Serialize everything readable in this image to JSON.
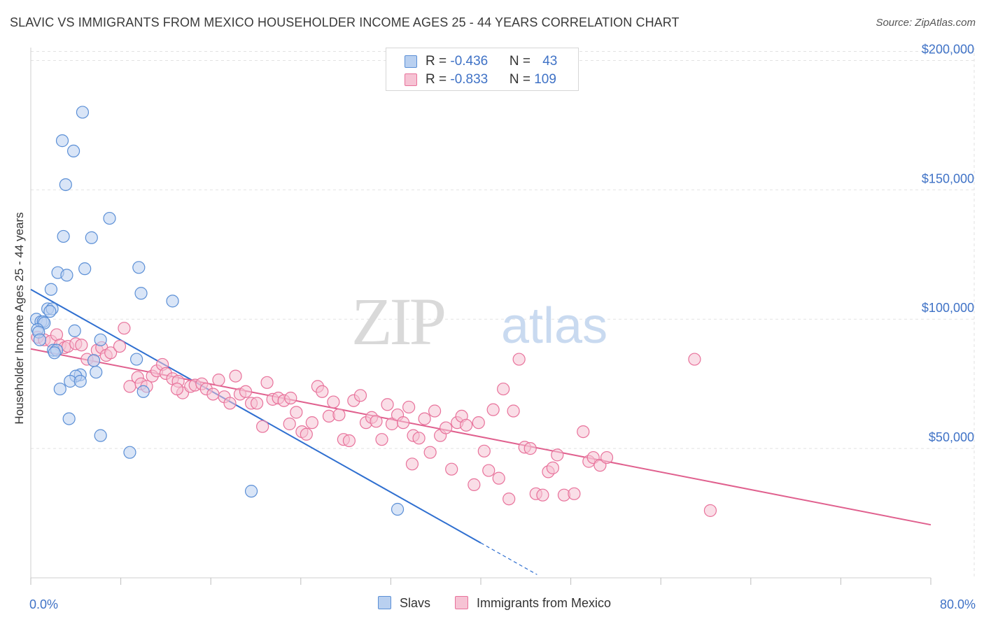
{
  "chart_data": {
    "type": "scatter",
    "title": "SLAVIC VS IMMIGRANTS FROM MEXICO HOUSEHOLDER INCOME AGES 25 - 44 YEARS CORRELATION CHART",
    "source": "Source: ZipAtlas.com",
    "xlabel": "",
    "ylabel": "Householder Income Ages 25 - 44 years",
    "xlim": [
      0,
      80
    ],
    "ylim": [
      0,
      205000
    ],
    "x_tick_labels": [
      "0.0%",
      "80.0%"
    ],
    "y_ticks": [
      {
        "value": 50000,
        "label": "$50,000"
      },
      {
        "value": 100000,
        "label": "$100,000"
      },
      {
        "value": 150000,
        "label": "$150,000"
      },
      {
        "value": 200000,
        "label": "$200,000"
      }
    ],
    "watermark": {
      "zip": "ZIP",
      "atlas": "atlas"
    },
    "series": [
      {
        "name": "Slavs",
        "color": "#5b8fd6",
        "fill": "#b9d0f0",
        "legend": {
          "r_label": "R = ",
          "r": "-0.436",
          "n_label": "N = ",
          "n": "43"
        },
        "trend": {
          "x0": 0,
          "y0": 111500,
          "x1": 40,
          "y1": 13500,
          "dash_to_x": 45
        },
        "points": [
          [
            4.6,
            180000
          ],
          [
            2.8,
            169000
          ],
          [
            3.8,
            165000
          ],
          [
            3.1,
            152000
          ],
          [
            7.0,
            139000
          ],
          [
            2.9,
            132000
          ],
          [
            5.4,
            131500
          ],
          [
            9.6,
            120000
          ],
          [
            2.4,
            118000
          ],
          [
            4.8,
            119500
          ],
          [
            3.2,
            117000
          ],
          [
            1.8,
            111500
          ],
          [
            9.8,
            110000
          ],
          [
            12.6,
            107000
          ],
          [
            1.5,
            104000
          ],
          [
            1.9,
            104000
          ],
          [
            1.7,
            103000
          ],
          [
            0.5,
            100000
          ],
          [
            0.9,
            99000
          ],
          [
            1.1,
            99000
          ],
          [
            1.2,
            98500
          ],
          [
            0.6,
            96000
          ],
          [
            0.7,
            95000
          ],
          [
            3.9,
            95500
          ],
          [
            0.8,
            92000
          ],
          [
            6.2,
            92000
          ],
          [
            2.0,
            88000
          ],
          [
            2.3,
            88000
          ],
          [
            2.1,
            87000
          ],
          [
            9.4,
            84500
          ],
          [
            5.6,
            84000
          ],
          [
            5.8,
            79500
          ],
          [
            4.4,
            78500
          ],
          [
            4.0,
            78000
          ],
          [
            3.5,
            76000
          ],
          [
            4.4,
            76000
          ],
          [
            2.6,
            73000
          ],
          [
            10.0,
            72000
          ],
          [
            3.4,
            61500
          ],
          [
            6.2,
            55000
          ],
          [
            8.8,
            48500
          ],
          [
            19.6,
            33500
          ],
          [
            32.6,
            26500
          ]
        ]
      },
      {
        "name": "Immigrants from Mexico",
        "color": "#e8729b",
        "fill": "#f6c3d4",
        "legend": {
          "r_label": "R = ",
          "r": "-0.833",
          "n_label": "N = ",
          "n": "109"
        },
        "trend": {
          "x0": 0,
          "y0": 88500,
          "x1": 80,
          "y1": 20500
        },
        "points": [
          [
            0.6,
            93000
          ],
          [
            1.2,
            92000
          ],
          [
            1.8,
            91500
          ],
          [
            2.3,
            94000
          ],
          [
            2.6,
            90000
          ],
          [
            3.0,
            89000
          ],
          [
            3.3,
            89500
          ],
          [
            4.0,
            90500
          ],
          [
            4.5,
            90000
          ],
          [
            5.0,
            84500
          ],
          [
            5.6,
            84000
          ],
          [
            5.9,
            88000
          ],
          [
            6.3,
            89000
          ],
          [
            6.7,
            86000
          ],
          [
            7.1,
            87000
          ],
          [
            7.9,
            89500
          ],
          [
            8.3,
            96500
          ],
          [
            8.8,
            74000
          ],
          [
            9.5,
            77500
          ],
          [
            9.8,
            75000
          ],
          [
            10.3,
            74000
          ],
          [
            10.8,
            78000
          ],
          [
            11.2,
            80000
          ],
          [
            11.7,
            82500
          ],
          [
            12.0,
            79000
          ],
          [
            12.6,
            77000
          ],
          [
            13.1,
            76000
          ],
          [
            13.5,
            71500
          ],
          [
            14.2,
            74000
          ],
          [
            14.6,
            74500
          ],
          [
            15.2,
            75000
          ],
          [
            15.6,
            73000
          ],
          [
            16.2,
            71000
          ],
          [
            16.7,
            76500
          ],
          [
            17.2,
            70000
          ],
          [
            17.7,
            67500
          ],
          [
            18.2,
            78000
          ],
          [
            18.6,
            71000
          ],
          [
            19.1,
            72000
          ],
          [
            19.6,
            67500
          ],
          [
            20.1,
            67500
          ],
          [
            20.6,
            58500
          ],
          [
            21.0,
            75500
          ],
          [
            21.5,
            69000
          ],
          [
            22.0,
            69500
          ],
          [
            22.5,
            68500
          ],
          [
            23.1,
            69500
          ],
          [
            23.6,
            64000
          ],
          [
            24.1,
            56500
          ],
          [
            24.5,
            55500
          ],
          [
            25.0,
            60000
          ],
          [
            25.5,
            74000
          ],
          [
            25.9,
            72000
          ],
          [
            26.5,
            62500
          ],
          [
            26.9,
            68000
          ],
          [
            27.4,
            63000
          ],
          [
            27.8,
            53500
          ],
          [
            28.3,
            53000
          ],
          [
            28.7,
            68500
          ],
          [
            29.3,
            70500
          ],
          [
            29.8,
            60000
          ],
          [
            30.3,
            62000
          ],
          [
            30.7,
            60500
          ],
          [
            31.2,
            53500
          ],
          [
            31.7,
            67000
          ],
          [
            32.1,
            59500
          ],
          [
            32.6,
            63000
          ],
          [
            33.1,
            60000
          ],
          [
            33.6,
            66000
          ],
          [
            34.0,
            55000
          ],
          [
            34.5,
            54000
          ],
          [
            35.0,
            61500
          ],
          [
            35.5,
            48500
          ],
          [
            35.9,
            64500
          ],
          [
            36.4,
            55000
          ],
          [
            36.9,
            58000
          ],
          [
            37.4,
            42000
          ],
          [
            37.9,
            60000
          ],
          [
            38.3,
            62500
          ],
          [
            38.7,
            59000
          ],
          [
            39.4,
            36000
          ],
          [
            39.8,
            60000
          ],
          [
            40.3,
            49000
          ],
          [
            40.7,
            41500
          ],
          [
            41.1,
            65000
          ],
          [
            41.6,
            38500
          ],
          [
            42.0,
            73000
          ],
          [
            42.5,
            30500
          ],
          [
            42.9,
            64500
          ],
          [
            43.4,
            84500
          ],
          [
            43.9,
            50500
          ],
          [
            44.4,
            50000
          ],
          [
            44.9,
            32500
          ],
          [
            45.5,
            32000
          ],
          [
            46.0,
            41000
          ],
          [
            46.4,
            42500
          ],
          [
            46.8,
            47500
          ],
          [
            47.4,
            32000
          ],
          [
            48.3,
            32500
          ],
          [
            49.1,
            56500
          ],
          [
            49.6,
            45000
          ],
          [
            50.0,
            46500
          ],
          [
            50.6,
            43500
          ],
          [
            51.2,
            46500
          ],
          [
            59.0,
            84500
          ],
          [
            60.4,
            26000
          ],
          [
            13.0,
            73000
          ],
          [
            23.0,
            59500
          ],
          [
            33.9,
            44000
          ]
        ]
      }
    ]
  }
}
